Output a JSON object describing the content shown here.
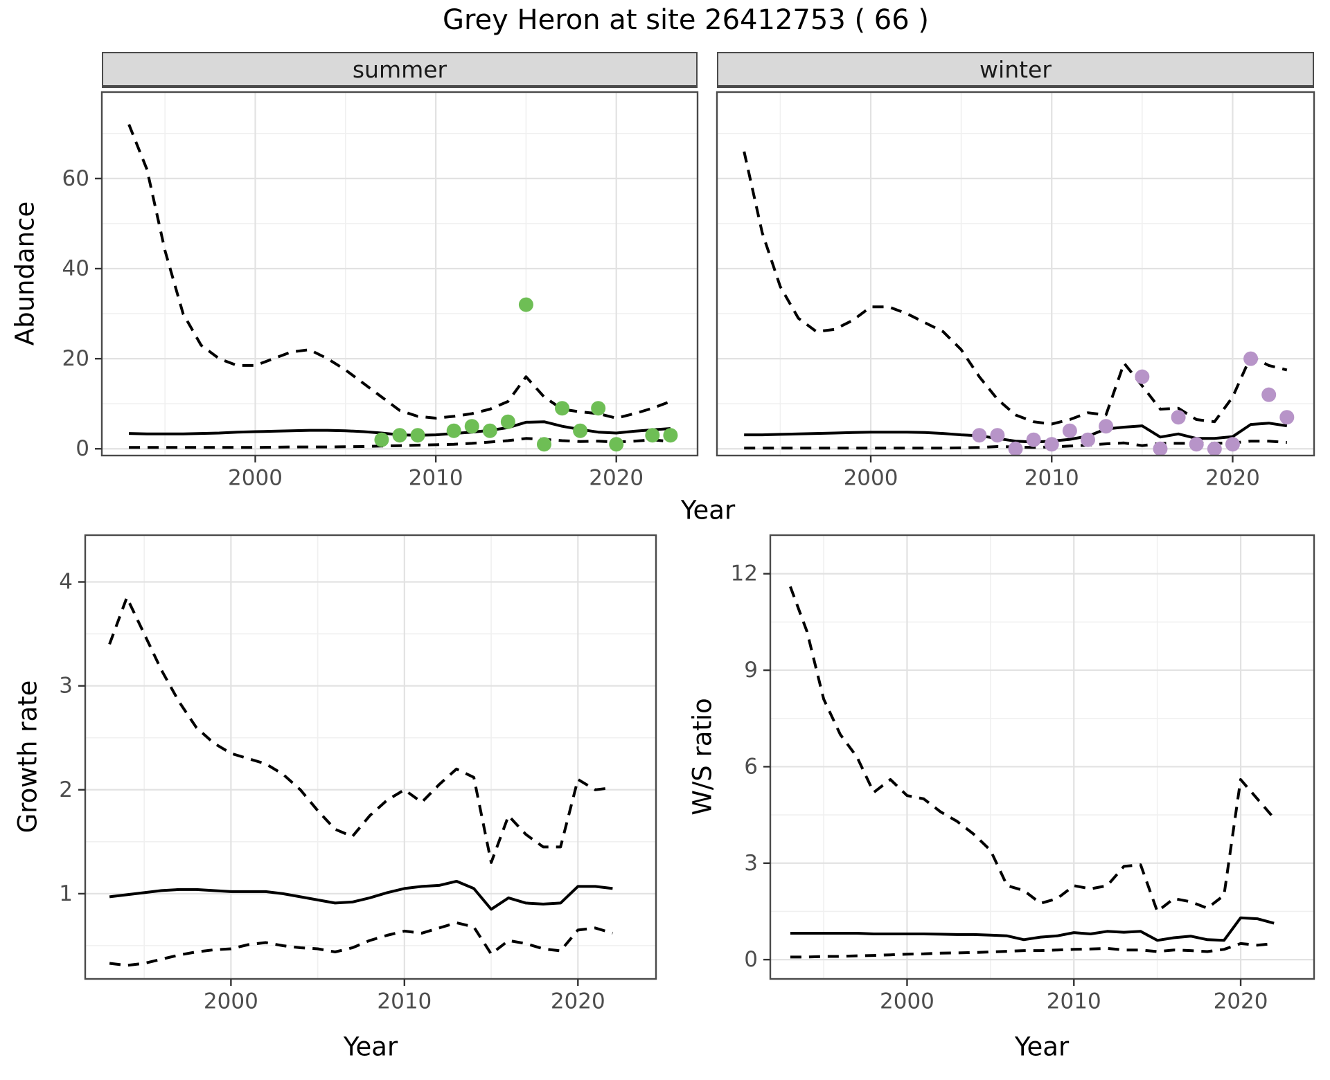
{
  "title": "Grey Heron at site 26412753 ( 66 )",
  "colors": {
    "summer_points": "#6ebe55",
    "winter_points": "#b794c8",
    "line": "#000000",
    "strip_fill": "#d9d9d9",
    "panel_border": "#4a4a4a",
    "grid_major": "#e2e2e2",
    "grid_minor": "#f0f0f0",
    "axis_text": "#4d4d4d",
    "tick_mark": "#333333"
  },
  "chart_data": [
    {
      "id": "abundance-summer",
      "type": "line",
      "facet_label": "summer",
      "xlabel": "Year",
      "ylabel": "Abundance",
      "xlim": [
        1991.5,
        2024.5
      ],
      "ylim": [
        -1.5,
        79.2
      ],
      "xticks": [
        2000,
        2010,
        2020
      ],
      "xticks_minor": [
        1995,
        2005,
        2015
      ],
      "yticks": [
        0,
        20,
        40,
        60
      ],
      "yticks_minor": [
        10,
        30,
        50,
        70
      ],
      "grid": "on",
      "x": [
        1993,
        1994,
        1995,
        1996,
        1997,
        1998,
        1999,
        2000,
        2001,
        2002,
        2003,
        2004,
        2005,
        2006,
        2007,
        2008,
        2009,
        2010,
        2011,
        2012,
        2013,
        2014,
        2015,
        2016,
        2017,
        2018,
        2019,
        2020,
        2021,
        2022,
        2023
      ],
      "series": [
        {
          "name": "upper 95% CI",
          "style": "dashed",
          "values": [
            72,
            62,
            44,
            30,
            23,
            20,
            18.5,
            18.5,
            20,
            21.5,
            22,
            20,
            17.5,
            14.5,
            11.5,
            8.5,
            7.2,
            6.8,
            7.2,
            7.8,
            8.8,
            10.5,
            16,
            11.5,
            8.8,
            8.2,
            7.8,
            6.8,
            7.8,
            9,
            10.5
          ]
        },
        {
          "name": "median",
          "style": "solid",
          "values": [
            3.4,
            3.3,
            3.3,
            3.3,
            3.4,
            3.5,
            3.7,
            3.8,
            3.9,
            4.0,
            4.1,
            4.1,
            4.0,
            3.8,
            3.5,
            3.1,
            3.0,
            3.1,
            3.4,
            3.7,
            4.1,
            4.7,
            5.9,
            6.0,
            5.0,
            4.3,
            3.7,
            3.5,
            3.9,
            4.2,
            4.5
          ]
        },
        {
          "name": "lower 95% CI",
          "style": "dashed",
          "values": [
            0.3,
            0.3,
            0.3,
            0.3,
            0.3,
            0.3,
            0.3,
            0.3,
            0.35,
            0.4,
            0.4,
            0.4,
            0.45,
            0.5,
            0.6,
            0.7,
            0.8,
            0.9,
            1.0,
            1.2,
            1.5,
            1.8,
            2.3,
            2.1,
            1.8,
            1.6,
            1.7,
            1.5,
            1.7,
            2.0,
            1.6
          ]
        }
      ],
      "points": {
        "name": "observed summer counts",
        "color": "#6ebe55",
        "x": [
          2007,
          2008,
          2009,
          2011,
          2012,
          2013,
          2014,
          2015,
          2016,
          2017,
          2018,
          2019,
          2020,
          2022,
          2023
        ],
        "y": [
          2,
          3,
          3,
          4,
          5,
          4,
          6,
          32,
          1,
          9,
          4,
          9,
          1,
          3,
          3
        ]
      }
    },
    {
      "id": "abundance-winter",
      "type": "line",
      "facet_label": "winter",
      "xlabel": "Year",
      "ylabel": "Abundance",
      "xlim": [
        1991.5,
        2024.5
      ],
      "ylim": [
        -1.5,
        79.2
      ],
      "xticks": [
        2000,
        2010,
        2020
      ],
      "xticks_minor": [
        1995,
        2005,
        2015
      ],
      "yticks": [
        0,
        20,
        40,
        60
      ],
      "yticks_minor": [
        10,
        30,
        50,
        70
      ],
      "grid": "on",
      "x": [
        1993,
        1994,
        1995,
        1996,
        1997,
        1998,
        1999,
        2000,
        2001,
        2002,
        2003,
        2004,
        2005,
        2006,
        2007,
        2008,
        2009,
        2010,
        2011,
        2012,
        2013,
        2014,
        2015,
        2016,
        2017,
        2018,
        2019,
        2020,
        2021,
        2022,
        2023
      ],
      "series": [
        {
          "name": "upper 95% CI",
          "style": "dashed",
          "values": [
            66,
            48,
            36,
            29,
            26,
            26.5,
            28.5,
            31.5,
            31.5,
            30,
            28,
            26,
            22,
            16,
            11,
            7.5,
            6,
            5.5,
            6.5,
            8,
            7.5,
            19,
            14,
            8.8,
            9,
            6.5,
            6,
            11.5,
            20.5,
            18.5,
            17.5
          ]
        },
        {
          "name": "median",
          "style": "solid",
          "values": [
            3.1,
            3.1,
            3.2,
            3.3,
            3.4,
            3.5,
            3.6,
            3.7,
            3.7,
            3.7,
            3.6,
            3.4,
            3.1,
            2.9,
            2.3,
            1.7,
            1.5,
            1.7,
            2.1,
            2.8,
            4.4,
            4.8,
            5.1,
            2.6,
            3.3,
            2.3,
            2.3,
            2.7,
            5.4,
            5.7,
            5.1
          ]
        },
        {
          "name": "lower 95% CI",
          "style": "dashed",
          "values": [
            0.15,
            0.15,
            0.15,
            0.15,
            0.15,
            0.15,
            0.15,
            0.15,
            0.15,
            0.15,
            0.15,
            0.15,
            0.2,
            0.3,
            0.5,
            0.4,
            0.3,
            0.4,
            0.6,
            0.8,
            1.1,
            1.3,
            0.7,
            1.2,
            1.2,
            1.2,
            1.2,
            1.3,
            1.7,
            1.7,
            1.4
          ]
        }
      ],
      "points": {
        "name": "observed winter counts",
        "color": "#b794c8",
        "x": [
          2006,
          2007,
          2008,
          2009,
          2010,
          2011,
          2012,
          2013,
          2015,
          2016,
          2017,
          2018,
          2019,
          2020,
          2021,
          2022,
          2023
        ],
        "y": [
          3,
          3,
          0,
          2,
          1,
          4,
          2,
          5,
          16,
          0,
          7,
          1,
          0,
          1,
          20,
          12,
          7
        ]
      }
    },
    {
      "id": "growth-rate",
      "type": "line",
      "facet_label": "",
      "xlabel": "Year",
      "ylabel": "Growth rate",
      "xlim": [
        1991.6,
        2024.5
      ],
      "ylim": [
        0.18,
        4.45
      ],
      "xticks": [
        2000,
        2010,
        2020
      ],
      "xticks_minor": [
        1995,
        2005,
        2015
      ],
      "yticks": [
        1,
        2,
        3,
        4
      ],
      "yticks_minor": [
        0.5,
        1.5,
        2.5,
        3.5
      ],
      "grid": "on",
      "x": [
        1993,
        1994,
        1995,
        1996,
        1997,
        1998,
        1999,
        2000,
        2001,
        2002,
        2003,
        2004,
        2005,
        2006,
        2007,
        2008,
        2009,
        2010,
        2011,
        2012,
        2013,
        2014,
        2015,
        2016,
        2017,
        2018,
        2019,
        2020,
        2021,
        2022
      ],
      "series": [
        {
          "name": "upper 95% CI",
          "style": "dashed",
          "values": [
            3.4,
            3.85,
            3.5,
            3.15,
            2.85,
            2.6,
            2.45,
            2.35,
            2.3,
            2.25,
            2.15,
            2.0,
            1.8,
            1.62,
            1.55,
            1.75,
            1.9,
            2.0,
            1.88,
            2.05,
            2.2,
            2.12,
            1.3,
            1.75,
            1.57,
            1.45,
            1.45,
            2.1,
            2.0,
            2.02
          ]
        },
        {
          "name": "median",
          "style": "solid",
          "values": [
            0.97,
            0.99,
            1.01,
            1.03,
            1.04,
            1.04,
            1.03,
            1.02,
            1.02,
            1.02,
            1.0,
            0.97,
            0.94,
            0.91,
            0.92,
            0.96,
            1.01,
            1.05,
            1.07,
            1.08,
            1.12,
            1.05,
            0.85,
            0.96,
            0.91,
            0.9,
            0.91,
            1.07,
            1.07,
            1.05
          ]
        },
        {
          "name": "lower 95% CI",
          "style": "dashed",
          "values": [
            0.33,
            0.31,
            0.33,
            0.37,
            0.41,
            0.44,
            0.46,
            0.47,
            0.51,
            0.53,
            0.5,
            0.48,
            0.47,
            0.44,
            0.48,
            0.55,
            0.6,
            0.64,
            0.62,
            0.67,
            0.72,
            0.68,
            0.42,
            0.55,
            0.52,
            0.47,
            0.45,
            0.65,
            0.67,
            0.62
          ]
        }
      ],
      "points": null
    },
    {
      "id": "ws-ratio",
      "type": "line",
      "facet_label": "",
      "xlabel": "Year",
      "ylabel": "W/S ratio",
      "xlim": [
        1991.8,
        2024.4
      ],
      "ylim": [
        -0.6,
        13.2
      ],
      "xticks": [
        2000,
        2010,
        2020
      ],
      "xticks_minor": [
        1995,
        2005,
        2015
      ],
      "yticks": [
        0,
        3,
        6,
        9,
        12
      ],
      "yticks_minor": [
        1.5,
        4.5,
        7.5,
        10.5
      ],
      "grid": "on",
      "x": [
        1993,
        1994,
        1995,
        1996,
        1997,
        1998,
        1999,
        2000,
        2001,
        2002,
        2003,
        2004,
        2005,
        2006,
        2007,
        2008,
        2009,
        2010,
        2011,
        2012,
        2013,
        2014,
        2015,
        2016,
        2017,
        2018,
        2019,
        2020,
        2021,
        2022
      ],
      "series": [
        {
          "name": "upper 95% CI",
          "style": "dashed",
          "values": [
            11.6,
            10.2,
            8.1,
            7.0,
            6.3,
            5.2,
            5.6,
            5.1,
            5.0,
            4.6,
            4.3,
            3.9,
            3.4,
            2.3,
            2.15,
            1.75,
            1.9,
            2.3,
            2.2,
            2.3,
            2.9,
            2.95,
            1.5,
            1.9,
            1.8,
            1.6,
            2.0,
            5.6,
            5.0,
            4.4
          ]
        },
        {
          "name": "median",
          "style": "solid",
          "values": [
            0.82,
            0.82,
            0.82,
            0.82,
            0.82,
            0.8,
            0.8,
            0.8,
            0.8,
            0.79,
            0.78,
            0.78,
            0.76,
            0.74,
            0.62,
            0.7,
            0.74,
            0.84,
            0.8,
            0.88,
            0.85,
            0.88,
            0.6,
            0.68,
            0.73,
            0.62,
            0.6,
            1.3,
            1.27,
            1.13
          ]
        },
        {
          "name": "lower 95% CI",
          "style": "dashed",
          "values": [
            0.08,
            0.08,
            0.1,
            0.1,
            0.12,
            0.13,
            0.15,
            0.17,
            0.18,
            0.2,
            0.21,
            0.22,
            0.24,
            0.26,
            0.28,
            0.28,
            0.3,
            0.32,
            0.33,
            0.35,
            0.3,
            0.3,
            0.25,
            0.3,
            0.28,
            0.25,
            0.32,
            0.5,
            0.45,
            0.5
          ]
        }
      ],
      "points": null
    }
  ]
}
